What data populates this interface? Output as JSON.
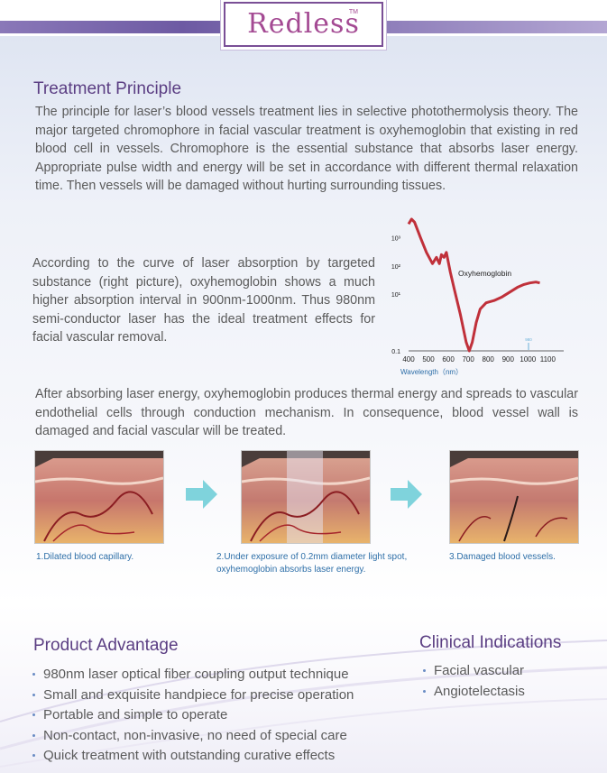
{
  "brand": {
    "name": "Redless",
    "tm": "TM"
  },
  "treatment": {
    "title": "Treatment Principle",
    "para1": "The principle for laser’s blood vessels treatment lies in selective photothermolysis theory. The major targeted chromophore in facial vascular treatment is oxyhemoglobin that existing in red blood cell in vessels. Chromophore is the essential substance that absorbs laser energy. Appropriate pulse width and energy will be set in accordance with different thermal relaxation time. Then vessels will be damaged without hurting surrounding tissues.",
    "para2": "According to the curve of laser absorption by targeted substance (right picture), oxyhemoglobin shows a much higher absorption interval in 900nm-1000nm. Thus 980nm semi-conductor laser has the ideal treatment effects for facial vascular removal.",
    "para3": "After absorbing laser energy, oxyhemoglobin produces thermal energy and spreads to vascular endothelial cells through conduction mechanism. In consequence, blood vessel wall is damaged and facial vascular will be treated."
  },
  "chart_data": {
    "type": "line",
    "title": "",
    "xlabel": "Wavelength（nm）",
    "ylabel": "",
    "x_ticks": [
      "400",
      "500",
      "600",
      "700",
      "800",
      "900",
      "1000",
      "1100"
    ],
    "y_ticks": [
      "0.1",
      "10¹",
      "10²",
      "10³"
    ],
    "xlim": [
      400,
      1100
    ],
    "y_scale": "log",
    "annotation": "Oxyhemoglobin",
    "marker_label": "980",
    "series": [
      {
        "name": "Oxyhemoglobin",
        "color": "#c0303a",
        "x": [
          400,
          415,
          430,
          460,
          490,
          520,
          540,
          555,
          565,
          578,
          590,
          610,
          630,
          660,
          690,
          705,
          720,
          740,
          760,
          790,
          830,
          870,
          910,
          950,
          980,
          1010,
          1040,
          1060
        ],
        "y": [
          3000,
          4500,
          3500,
          1000,
          300,
          120,
          200,
          120,
          250,
          200,
          300,
          60,
          15,
          2,
          0.2,
          0.1,
          0.2,
          1,
          3,
          5,
          6,
          8,
          12,
          18,
          22,
          25,
          27,
          25
        ]
      }
    ]
  },
  "steps": [
    {
      "caption": "1.Dilated blood capillary."
    },
    {
      "caption": "2.Under exposure of 0.2mm diameter light spot, oxyhemoglobin absorbs laser energy."
    },
    {
      "caption": "3.Damaged blood vessels."
    }
  ],
  "advantage": {
    "title": "Product Advantage",
    "items": [
      "980nm laser optical fiber coupling output technique",
      "Small and exquisite handpiece for precise operation",
      "Portable and simple to operate",
      "Non-contact, non-invasive, no need of special care",
      "Quick treatment with outstanding curative effects"
    ]
  },
  "clinical": {
    "title": "Clinical Indications",
    "items": [
      "Facial vascular",
      "Angiotelectasis"
    ]
  },
  "colors": {
    "heading": "#5b3e83",
    "caption": "#2e6fa8",
    "arrow": "#7fd3dc",
    "curve": "#c0303a"
  }
}
